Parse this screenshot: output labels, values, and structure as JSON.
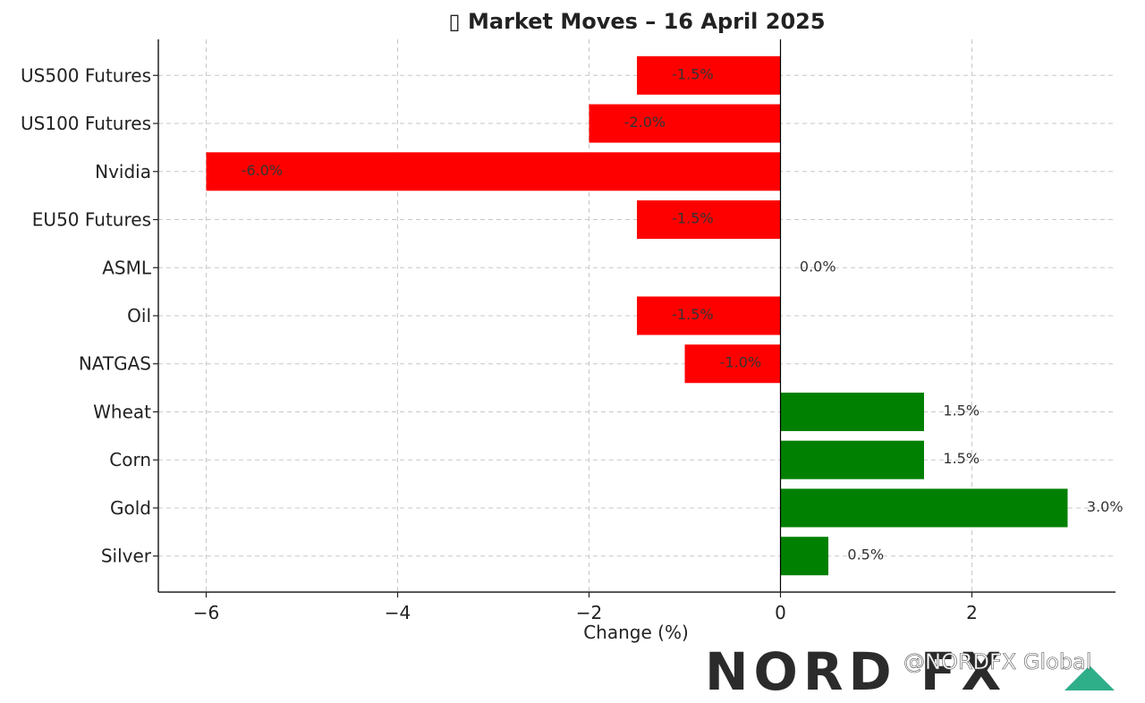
{
  "chart_data": {
    "type": "bar",
    "orientation": "horizontal",
    "title": "Market Moves – 16 April 2025",
    "title_icon": "bar-chart-emoji",
    "xlabel": "Change (%)",
    "ylabel": "",
    "xlim": [
      -6.5,
      3.5
    ],
    "xticks": [
      -6,
      -4,
      -2,
      0,
      2
    ],
    "xtick_labels": [
      "−6",
      "−4",
      "−2",
      "0",
      "2"
    ],
    "grid": true,
    "categories": [
      "US500 Futures",
      "US100 Futures",
      "Nvidia",
      "EU50 Futures",
      "ASML",
      "Oil",
      "NATGAS",
      "Wheat",
      "Corn",
      "Gold",
      "Silver"
    ],
    "values": [
      -1.5,
      -2.0,
      -6.0,
      -1.5,
      0.0,
      -1.5,
      -1.0,
      1.5,
      1.5,
      3.0,
      0.5
    ],
    "value_labels": [
      "-1.5%",
      "-2.0%",
      "-6.0%",
      "-1.5%",
      "0.0%",
      "-1.5%",
      "-1.0%",
      "1.5%",
      "1.5%",
      "3.0%",
      "0.5%"
    ],
    "colors": {
      "negative": "#ff0000",
      "positive": "#008000"
    }
  },
  "branding": {
    "logo_text": "NORD FX",
    "watermark": "@NORDFX Global",
    "logo_color": "#2b2b2b",
    "logo_accent": "#2fae8a"
  }
}
